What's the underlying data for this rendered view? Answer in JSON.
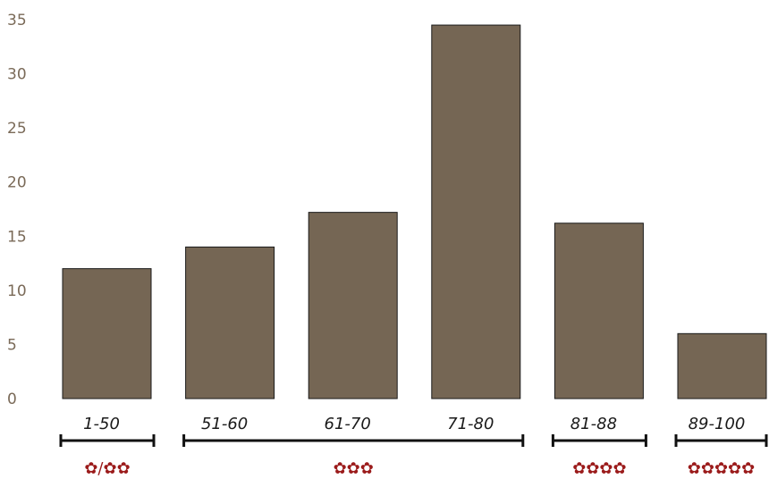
{
  "chart_data": {
    "type": "bar",
    "categories": [
      "1-50",
      "51-60",
      "61-70",
      "71-80",
      "81-88",
      "89-100"
    ],
    "values": [
      12,
      14,
      17.2,
      34.5,
      16.2,
      6
    ],
    "title": "",
    "xlabel": "",
    "ylabel": "",
    "ylim": [
      0,
      35
    ],
    "yticks": [
      0,
      5,
      10,
      15,
      20,
      25,
      30,
      35
    ],
    "grid": false,
    "colors": {
      "bar": "#756654",
      "axis_tick": "#7a6a58",
      "rating": "#9b1b1b"
    },
    "rating_groups": [
      {
        "from": 0,
        "to": 0,
        "label": "✿/✿✿"
      },
      {
        "from": 1,
        "to": 3,
        "label": "✿✿✿"
      },
      {
        "from": 4,
        "to": 4,
        "label": "✿✿✿✿"
      },
      {
        "from": 5,
        "to": 5,
        "label": "✿✿✿✿✿"
      }
    ]
  }
}
